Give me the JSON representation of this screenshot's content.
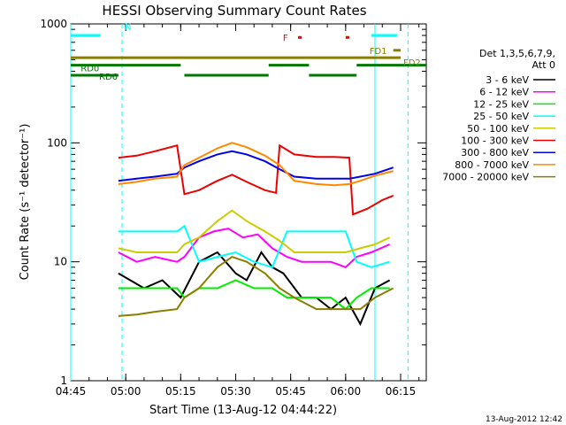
{
  "chart_data": {
    "type": "line",
    "title": "HESSI Observing Summary Count Rates",
    "xlabel": "Start Time (13-Aug-12 04:44:22)",
    "ylabel": "Count Rate (s⁻¹ detector⁻¹)",
    "yscale": "log",
    "ylim": [
      1,
      1000
    ],
    "xlim_minutes": [
      "04:45",
      "06:22"
    ],
    "x_ticks": [
      "04:45",
      "05:00",
      "05:15",
      "05:30",
      "05:45",
      "06:00",
      "06:15"
    ],
    "y_ticks": [
      "1",
      "10",
      "100",
      "1000"
    ],
    "grid": false,
    "legend_title_lines": [
      "Det 1,3,5,6,7,9,",
      "Att 0"
    ],
    "legend_placement": "right, outside plot",
    "timestamp": "13-Aug-2012 12:42",
    "series": [
      {
        "name": "3 - 6 keV",
        "color": "#000000",
        "points": [
          [
            "04:58",
            8
          ],
          [
            "05:05",
            6
          ],
          [
            "05:10",
            7
          ],
          [
            "05:15",
            5
          ],
          [
            "05:20",
            10
          ],
          [
            "05:25",
            12
          ],
          [
            "05:30",
            8
          ],
          [
            "05:33",
            7
          ],
          [
            "05:37",
            12
          ],
          [
            "05:40",
            9
          ],
          [
            "05:43",
            8
          ],
          [
            "05:48",
            5
          ],
          [
            "05:52",
            5
          ],
          [
            "05:56",
            4
          ],
          [
            "06:00",
            5
          ],
          [
            "06:04",
            3
          ],
          [
            "06:08",
            6
          ],
          [
            "06:12",
            7
          ]
        ]
      },
      {
        "name": "6 - 12 keV",
        "color": "#ff00ff",
        "points": [
          [
            "04:58",
            12
          ],
          [
            "05:03",
            10
          ],
          [
            "05:08",
            11
          ],
          [
            "05:14",
            10
          ],
          [
            "05:16",
            11
          ],
          [
            "05:20",
            16
          ],
          [
            "05:24",
            18
          ],
          [
            "05:28",
            19
          ],
          [
            "05:32",
            16
          ],
          [
            "05:36",
            17
          ],
          [
            "05:40",
            13
          ],
          [
            "05:44",
            11
          ],
          [
            "05:48",
            10
          ],
          [
            "05:52",
            10
          ],
          [
            "05:56",
            10
          ],
          [
            "06:00",
            9
          ],
          [
            "06:03",
            11
          ],
          [
            "06:07",
            12
          ],
          [
            "06:12",
            14
          ]
        ]
      },
      {
        "name": "12 - 25 keV",
        "color": "#00ee00",
        "points": [
          [
            "04:58",
            6
          ],
          [
            "05:03",
            6
          ],
          [
            "05:08",
            6
          ],
          [
            "05:14",
            6
          ],
          [
            "05:16",
            5
          ],
          [
            "05:20",
            6
          ],
          [
            "05:25",
            6
          ],
          [
            "05:30",
            7
          ],
          [
            "05:35",
            6
          ],
          [
            "05:40",
            6
          ],
          [
            "05:44",
            5
          ],
          [
            "05:48",
            5
          ],
          [
            "05:52",
            5
          ],
          [
            "05:56",
            5
          ],
          [
            "06:00",
            4
          ],
          [
            "06:03",
            5
          ],
          [
            "06:07",
            6
          ],
          [
            "06:12",
            6
          ]
        ]
      },
      {
        "name": "25 - 50 keV",
        "color": "#00ffff",
        "points": [
          [
            "04:58",
            18
          ],
          [
            "05:03",
            18
          ],
          [
            "05:08",
            18
          ],
          [
            "05:14",
            18
          ],
          [
            "05:16",
            20
          ],
          [
            "05:20",
            10
          ],
          [
            "05:25",
            11
          ],
          [
            "05:30",
            12
          ],
          [
            "05:35",
            10
          ],
          [
            "05:40",
            9
          ],
          [
            "05:44",
            18
          ],
          [
            "05:48",
            18
          ],
          [
            "05:52",
            18
          ],
          [
            "05:56",
            18
          ],
          [
            "06:00",
            18
          ],
          [
            "06:03",
            10
          ],
          [
            "06:07",
            9
          ],
          [
            "06:12",
            10
          ]
        ]
      },
      {
        "name": "50 - 100 keV",
        "color": "#cccc00",
        "points": [
          [
            "04:58",
            13
          ],
          [
            "05:03",
            12
          ],
          [
            "05:08",
            12
          ],
          [
            "05:14",
            12
          ],
          [
            "05:16",
            14
          ],
          [
            "05:20",
            16
          ],
          [
            "05:25",
            22
          ],
          [
            "05:29",
            27
          ],
          [
            "05:33",
            22
          ],
          [
            "05:38",
            18
          ],
          [
            "05:42",
            15
          ],
          [
            "05:46",
            12
          ],
          [
            "05:50",
            12
          ],
          [
            "05:55",
            12
          ],
          [
            "06:00",
            12
          ],
          [
            "06:04",
            13
          ],
          [
            "06:08",
            14
          ],
          [
            "06:12",
            16
          ]
        ]
      },
      {
        "name": "100 - 300 keV",
        "color": "#ee0000",
        "points": [
          [
            "04:58",
            75
          ],
          [
            "05:03",
            78
          ],
          [
            "05:08",
            85
          ],
          [
            "05:14",
            95
          ],
          [
            "05:16",
            37
          ],
          [
            "05:20",
            40
          ],
          [
            "05:25",
            48
          ],
          [
            "05:29",
            54
          ],
          [
            "05:33",
            47
          ],
          [
            "05:38",
            40
          ],
          [
            "05:41",
            38
          ],
          [
            "05:42",
            95
          ],
          [
            "05:46",
            80
          ],
          [
            "05:52",
            76
          ],
          [
            "05:57",
            76
          ],
          [
            "06:01",
            75
          ],
          [
            "06:02",
            25
          ],
          [
            "06:06",
            28
          ],
          [
            "06:10",
            33
          ],
          [
            "06:13",
            36
          ]
        ]
      },
      {
        "name": "300 - 800 keV",
        "color": "#0000ee",
        "points": [
          [
            "04:58",
            48
          ],
          [
            "05:03",
            50
          ],
          [
            "05:08",
            52
          ],
          [
            "05:14",
            55
          ],
          [
            "05:16",
            62
          ],
          [
            "05:20",
            70
          ],
          [
            "05:25",
            80
          ],
          [
            "05:29",
            85
          ],
          [
            "05:33",
            80
          ],
          [
            "05:38",
            70
          ],
          [
            "05:42",
            60
          ],
          [
            "05:46",
            52
          ],
          [
            "05:52",
            50
          ],
          [
            "05:57",
            50
          ],
          [
            "06:01",
            50
          ],
          [
            "06:04",
            52
          ],
          [
            "06:08",
            55
          ],
          [
            "06:13",
            62
          ]
        ]
      },
      {
        "name": "800 - 7000 keV",
        "color": "#ff8800",
        "points": [
          [
            "04:58",
            45
          ],
          [
            "05:03",
            47
          ],
          [
            "05:08",
            50
          ],
          [
            "05:14",
            52
          ],
          [
            "05:16",
            65
          ],
          [
            "05:20",
            75
          ],
          [
            "05:25",
            90
          ],
          [
            "05:29",
            100
          ],
          [
            "05:33",
            92
          ],
          [
            "05:38",
            78
          ],
          [
            "05:42",
            65
          ],
          [
            "05:46",
            48
          ],
          [
            "05:52",
            45
          ],
          [
            "05:57",
            44
          ],
          [
            "06:01",
            45
          ],
          [
            "06:04",
            48
          ],
          [
            "06:08",
            53
          ],
          [
            "06:13",
            58
          ]
        ]
      },
      {
        "name": "7000 - 20000 keV",
        "color": "#8b7d00",
        "points": [
          [
            "04:58",
            3.5
          ],
          [
            "05:03",
            3.6
          ],
          [
            "05:08",
            3.8
          ],
          [
            "05:14",
            4
          ],
          [
            "05:16",
            5
          ],
          [
            "05:20",
            6
          ],
          [
            "05:25",
            9
          ],
          [
            "05:29",
            11
          ],
          [
            "05:33",
            10
          ],
          [
            "05:38",
            8
          ],
          [
            "05:42",
            6
          ],
          [
            "05:46",
            5
          ],
          [
            "05:52",
            4
          ],
          [
            "05:56",
            4
          ],
          [
            "06:00",
            4
          ],
          [
            "06:04",
            4
          ],
          [
            "06:08",
            5
          ],
          [
            "06:13",
            6
          ]
        ]
      }
    ],
    "state_bars": [
      {
        "label": "N",
        "color": "#00ffff",
        "y_level": 800,
        "segments": [
          [
            "04:45",
            "04:53"
          ],
          [
            "06:07",
            "06:14"
          ]
        ]
      },
      {
        "label": "F",
        "color": "#ee0000",
        "y_level": 770,
        "segments": [
          [
            "05:47",
            "05:48"
          ],
          [
            "06:00",
            "06:01"
          ]
        ]
      },
      {
        "label": "FD1",
        "color": "#8b7d00",
        "y_level": 600,
        "segments": [
          [
            "06:13",
            "06:15"
          ]
        ]
      },
      {
        "label": "FD2",
        "color": "#8b7d00",
        "y_level": 520,
        "segments": [
          [
            "04:45",
            "06:15"
          ]
        ]
      },
      {
        "label": "RD0",
        "color": "#007700",
        "y_level": 450,
        "segments": [
          [
            "04:45",
            "05:15"
          ],
          [
            "05:39",
            "05:50"
          ],
          [
            "06:03",
            "06:22"
          ]
        ]
      },
      {
        "label": "RD6",
        "color": "#007700",
        "y_level": 370,
        "segments": [
          [
            "04:45",
            "04:58"
          ],
          [
            "05:16",
            "05:39"
          ],
          [
            "05:50",
            "06:03"
          ]
        ]
      }
    ],
    "vertical_markers": [
      {
        "time": "04:45",
        "color": "#00ffff",
        "style": "solid"
      },
      {
        "time": "04:59",
        "color": "#00ffff",
        "style": "dashed"
      },
      {
        "time": "06:08",
        "color": "#00ffff",
        "style": "solid"
      },
      {
        "time": "06:17",
        "color": "#00ffff",
        "style": "dashed"
      }
    ]
  }
}
